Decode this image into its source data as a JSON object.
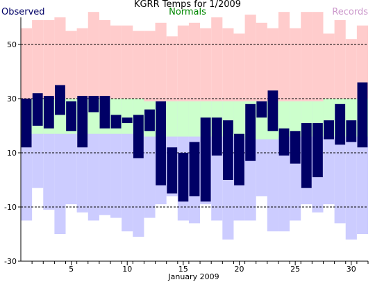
{
  "chart_data": {
    "type": "bar",
    "title": "KGRR Temps for 1/2009",
    "xlabel": "January 2009",
    "ylabel": "",
    "legend": {
      "observed": "Observed",
      "normals": "Normals",
      "records": "Records",
      "placement": "top"
    },
    "colors": {
      "observed": "#000066",
      "normals": "#ccffcc",
      "records_high": "#ffcccc",
      "records_low": "#ccccff",
      "legend_observed": "#000066",
      "legend_normals": "#008800",
      "legend_records": "#cc99cc"
    },
    "ylim": [
      -30,
      60
    ],
    "xlim": [
      0.5,
      31.5
    ],
    "y_ticks": [
      -30,
      -10,
      10,
      30,
      50
    ],
    "x_ticks": [
      5,
      10,
      15,
      20,
      25,
      30
    ],
    "gridlines_y": [
      -10,
      10,
      30,
      50
    ],
    "days": [
      1,
      2,
      3,
      4,
      5,
      6,
      7,
      8,
      9,
      10,
      11,
      12,
      13,
      14,
      15,
      16,
      17,
      18,
      19,
      20,
      21,
      22,
      23,
      24,
      25,
      26,
      27,
      28,
      29,
      30,
      31
    ],
    "observed_high": [
      30,
      32,
      31,
      35,
      29,
      31,
      31,
      31,
      24,
      23,
      24,
      26,
      29,
      12,
      10,
      14,
      23,
      23,
      22,
      17,
      28,
      29,
      33,
      19,
      18,
      21,
      21,
      22,
      28,
      22,
      36
    ],
    "observed_low": [
      12,
      20,
      19,
      24,
      18,
      12,
      25,
      19,
      19,
      21,
      8,
      18,
      -2,
      -5,
      -8,
      -6,
      -8,
      9,
      0,
      -2,
      7,
      23,
      18,
      9,
      6,
      -3,
      1,
      15,
      13,
      14,
      12
    ],
    "normal_high": [
      30,
      30,
      30,
      30,
      30,
      30,
      30,
      30,
      30,
      30,
      30,
      29,
      29,
      29,
      29,
      29,
      29,
      29,
      29,
      29,
      29,
      29,
      29,
      29,
      29,
      29,
      29,
      30,
      30,
      30,
      30
    ],
    "normal_low": [
      17,
      17,
      17,
      17,
      17,
      17,
      17,
      17,
      17,
      17,
      17,
      16,
      16,
      16,
      16,
      16,
      16,
      16,
      16,
      16,
      15,
      15,
      15,
      16,
      16,
      16,
      16,
      16,
      16,
      16,
      16
    ],
    "record_high": [
      56,
      59,
      59,
      60,
      55,
      56,
      62,
      59,
      57,
      57,
      55,
      55,
      58,
      53,
      57,
      58,
      56,
      60,
      56,
      54,
      61,
      58,
      56,
      62,
      56,
      62,
      62,
      54,
      59,
      52,
      57
    ],
    "record_low": [
      -15,
      -3,
      -11,
      -20,
      -9,
      -12,
      -15,
      -13,
      -14,
      -19,
      -21,
      -14,
      -9,
      -6,
      -15,
      -16,
      -9,
      -15,
      -22,
      -15,
      -15,
      -6,
      -19,
      -19,
      -15,
      -9,
      -12,
      -9,
      -16,
      -22,
      -20
    ]
  }
}
